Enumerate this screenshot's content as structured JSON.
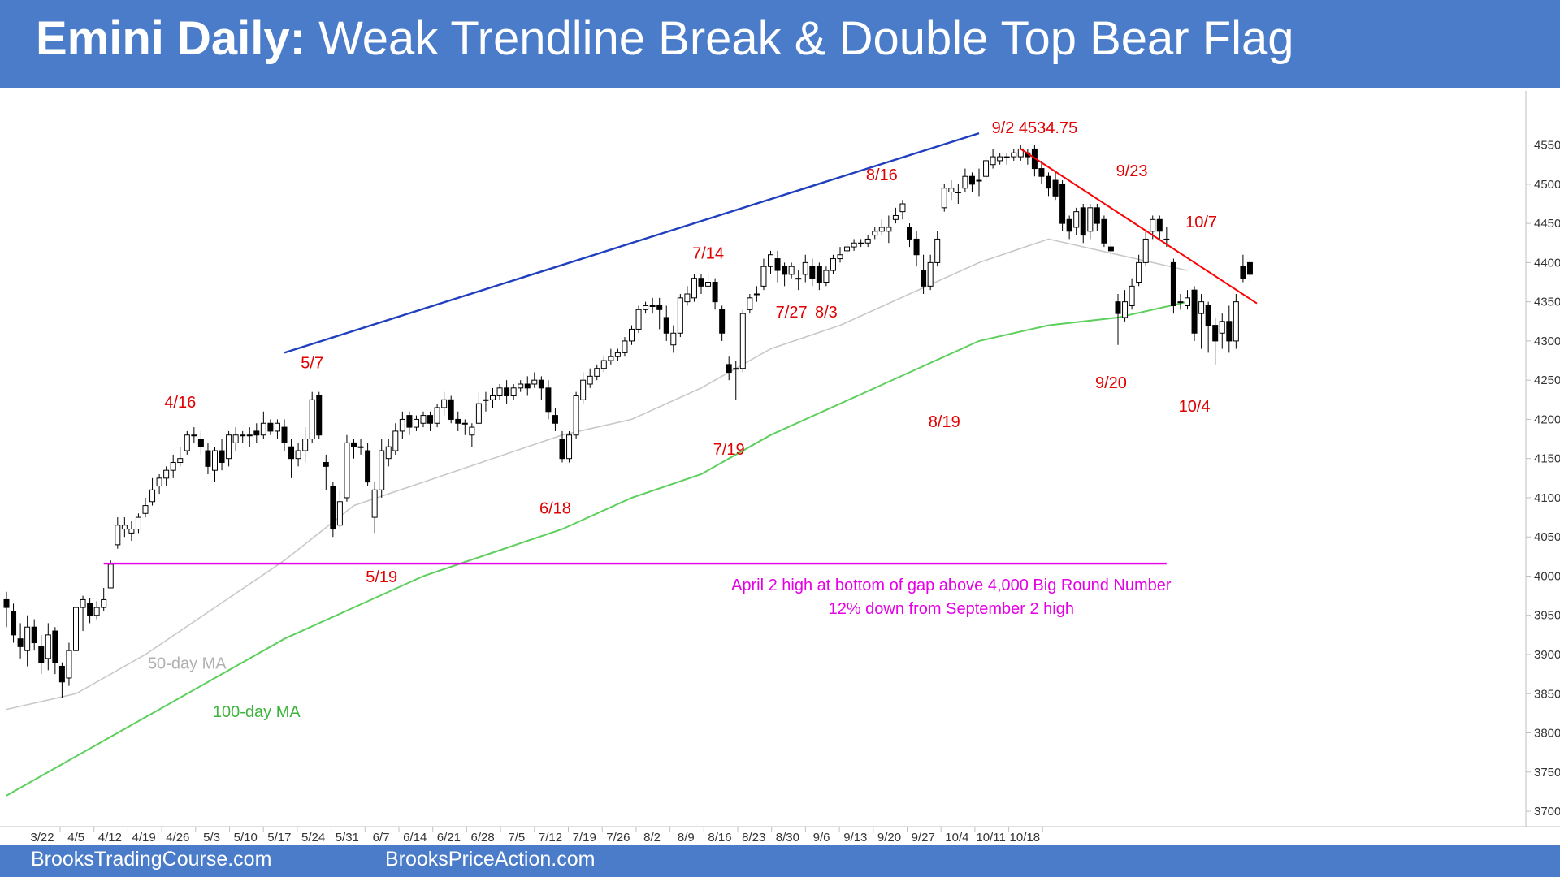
{
  "title": {
    "bold": "Emini Daily:",
    "rest": "Weak Trendline Break & Double Top Bear Flag"
  },
  "footer": {
    "left": "BrooksTradingCourse.com",
    "right": "BrooksPriceAction.com"
  },
  "colors": {
    "header": "#4a7cc9",
    "annotation": "#e00000",
    "trendline_up": "#1f3fbf",
    "trendline_down": "#ff0000",
    "horizontal": "#e600e6",
    "ma50": "#c8c8c8",
    "ma100": "#5ccf5c"
  },
  "chart_data": {
    "type": "candlestick",
    "y_axis": {
      "ticks": [
        3700,
        3750,
        3800,
        3850,
        3900,
        3950,
        4000,
        4050,
        4100,
        4150,
        4200,
        4250,
        4300,
        4350,
        4400,
        4450,
        4500,
        4550
      ],
      "range": [
        3670,
        4590
      ]
    },
    "x_axis": {
      "ticks": [
        "3/22",
        "4/5",
        "4/12",
        "4/19",
        "4/26",
        "5/3",
        "5/10",
        "5/17",
        "5/24",
        "5/31",
        "6/7",
        "6/14",
        "6/21",
        "6/28",
        "7/5",
        "7/12",
        "7/19",
        "7/26",
        "8/2",
        "8/9",
        "8/16",
        "8/23",
        "8/30",
        "9/6",
        "9/13",
        "9/20",
        "9/27",
        "10/4",
        "10/11",
        "10/18"
      ]
    },
    "candles": [
      [
        3970,
        3960,
        3980,
        3935
      ],
      [
        3955,
        3925,
        3965,
        3915
      ],
      [
        3920,
        3910,
        3940,
        3895
      ],
      [
        3905,
        3935,
        3950,
        3885
      ],
      [
        3935,
        3915,
        3945,
        3905
      ],
      [
        3910,
        3890,
        3925,
        3875
      ],
      [
        3895,
        3925,
        3940,
        3880
      ],
      [
        3930,
        3890,
        3935,
        3875
      ],
      [
        3885,
        3865,
        3890,
        3845
      ],
      [
        3870,
        3905,
        3915,
        3860
      ],
      [
        3905,
        3960,
        3970,
        3900
      ],
      [
        3960,
        3970,
        3975,
        3930
      ],
      [
        3965,
        3950,
        3972,
        3940
      ],
      [
        3950,
        3960,
        3968,
        3945
      ],
      [
        3960,
        3970,
        3985,
        3955
      ],
      [
        3985,
        4015,
        4020,
        3985
      ],
      [
        4040,
        4065,
        4075,
        4035
      ],
      [
        4060,
        4065,
        4075,
        4050
      ],
      [
        4055,
        4060,
        4070,
        4045
      ],
      [
        4060,
        4075,
        4080,
        4055
      ],
      [
        4080,
        4090,
        4100,
        4075
      ],
      [
        4095,
        4110,
        4125,
        4090
      ],
      [
        4115,
        4125,
        4130,
        4105
      ],
      [
        4125,
        4135,
        4140,
        4115
      ],
      [
        4135,
        4145,
        4155,
        4125
      ],
      [
        4145,
        4150,
        4165,
        4140
      ],
      [
        4160,
        4180,
        4185,
        4155
      ],
      [
        4180,
        4180,
        4190,
        4170
      ],
      [
        4175,
        4165,
        4185,
        4155
      ],
      [
        4160,
        4140,
        4170,
        4130
      ],
      [
        4135,
        4160,
        4165,
        4120
      ],
      [
        4160,
        4145,
        4175,
        4135
      ],
      [
        4150,
        4180,
        4185,
        4140
      ],
      [
        4170,
        4180,
        4190,
        4160
      ],
      [
        4180,
        4180,
        4185,
        4170
      ],
      [
        4180,
        4180,
        4190,
        4165
      ],
      [
        4185,
        4180,
        4195,
        4170
      ],
      [
        4180,
        4195,
        4210,
        4175
      ],
      [
        4195,
        4185,
        4200,
        4180
      ],
      [
        4185,
        4195,
        4200,
        4175
      ],
      [
        4190,
        4170,
        4200,
        4160
      ],
      [
        4165,
        4150,
        4175,
        4125
      ],
      [
        4150,
        4160,
        4170,
        4140
      ],
      [
        4160,
        4175,
        4190,
        4145
      ],
      [
        4175,
        4225,
        4235,
        4170
      ],
      [
        4230,
        4180,
        4235,
        4175
      ],
      [
        4145,
        4140,
        4155,
        4110
      ],
      [
        4115,
        4060,
        4120,
        4050
      ],
      [
        4065,
        4095,
        4110,
        4060
      ],
      [
        4100,
        4170,
        4180,
        4095
      ],
      [
        4170,
        4165,
        4175,
        4150
      ],
      [
        4165,
        4165,
        4175,
        4155
      ],
      [
        4160,
        4120,
        4170,
        4115
      ],
      [
        4075,
        4110,
        4120,
        4055
      ],
      [
        4110,
        4160,
        4175,
        4100
      ],
      [
        4150,
        4165,
        4175,
        4140
      ],
      [
        4160,
        4185,
        4195,
        4155
      ],
      [
        4185,
        4200,
        4210,
        4175
      ],
      [
        4205,
        4190,
        4210,
        4180
      ],
      [
        4190,
        4200,
        4205,
        4185
      ],
      [
        4195,
        4205,
        4210,
        4190
      ],
      [
        4205,
        4195,
        4210,
        4185
      ],
      [
        4195,
        4215,
        4220,
        4190
      ],
      [
        4215,
        4225,
        4235,
        4205
      ],
      [
        4225,
        4200,
        4230,
        4195
      ],
      [
        4200,
        4195,
        4210,
        4185
      ],
      [
        4195,
        4195,
        4200,
        4180
      ],
      [
        4180,
        4190,
        4195,
        4165
      ],
      [
        4195,
        4220,
        4235,
        4195
      ],
      [
        4225,
        4225,
        4235,
        4210
      ],
      [
        4225,
        4230,
        4240,
        4215
      ],
      [
        4230,
        4240,
        4245,
        4225
      ],
      [
        4240,
        4230,
        4250,
        4220
      ],
      [
        4230,
        4240,
        4245,
        4225
      ],
      [
        4240,
        4245,
        4250,
        4235
      ],
      [
        4245,
        4240,
        4255,
        4230
      ],
      [
        4245,
        4250,
        4260,
        4240
      ],
      [
        4250,
        4240,
        4255,
        4225
      ],
      [
        4240,
        4210,
        4250,
        4200
      ],
      [
        4205,
        4195,
        4215,
        4185
      ],
      [
        4175,
        4150,
        4185,
        4145
      ],
      [
        4150,
        4180,
        4185,
        4145
      ],
      [
        4180,
        4230,
        4235,
        4175
      ],
      [
        4225,
        4250,
        4260,
        4220
      ],
      [
        4245,
        4255,
        4265,
        4240
      ],
      [
        4255,
        4265,
        4270,
        4250
      ],
      [
        4265,
        4275,
        4280,
        4260
      ],
      [
        4275,
        4280,
        4290,
        4270
      ],
      [
        4280,
        4285,
        4290,
        4275
      ],
      [
        4285,
        4300,
        4305,
        4280
      ],
      [
        4300,
        4315,
        4320,
        4295
      ],
      [
        4315,
        4340,
        4345,
        4310
      ],
      [
        4340,
        4345,
        4350,
        4335
      ],
      [
        4345,
        4345,
        4355,
        4335
      ],
      [
        4345,
        4340,
        4355,
        4315
      ],
      [
        4330,
        4310,
        4345,
        4300
      ],
      [
        4295,
        4310,
        4320,
        4285
      ],
      [
        4310,
        4355,
        4360,
        4305
      ],
      [
        4350,
        4360,
        4370,
        4345
      ],
      [
        4355,
        4380,
        4385,
        4350
      ],
      [
        4380,
        4370,
        4385,
        4360
      ],
      [
        4370,
        4375,
        4385,
        4365
      ],
      [
        4375,
        4350,
        4380,
        4340
      ],
      [
        4340,
        4310,
        4345,
        4300
      ],
      [
        4270,
        4260,
        4280,
        4250
      ],
      [
        4265,
        4265,
        4275,
        4225
      ],
      [
        4265,
        4335,
        4340,
        4260
      ],
      [
        4340,
        4355,
        4360,
        4335
      ],
      [
        4360,
        4360,
        4370,
        4350
      ],
      [
        4370,
        4395,
        4405,
        4365
      ],
      [
        4395,
        4410,
        4415,
        4385
      ],
      [
        4405,
        4390,
        4415,
        4375
      ],
      [
        4395,
        4385,
        4400,
        4370
      ],
      [
        4385,
        4395,
        4400,
        4380
      ],
      [
        4380,
        4380,
        4390,
        4365
      ],
      [
        4385,
        4400,
        4410,
        4375
      ],
      [
        4395,
        4380,
        4405,
        4370
      ],
      [
        4395,
        4375,
        4400,
        4365
      ],
      [
        4375,
        4390,
        4395,
        4370
      ],
      [
        4390,
        4405,
        4410,
        4385
      ],
      [
        4405,
        4410,
        4420,
        4400
      ],
      [
        4415,
        4420,
        4425,
        4410
      ],
      [
        4420,
        4425,
        4430,
        4415
      ],
      [
        4425,
        4425,
        4430,
        4420
      ],
      [
        4425,
        4430,
        4435,
        4420
      ],
      [
        4435,
        4440,
        4445,
        4430
      ],
      [
        4440,
        4445,
        4455,
        4435
      ],
      [
        4440,
        4445,
        4460,
        4425
      ],
      [
        4455,
        4460,
        4470,
        4450
      ],
      [
        4465,
        4475,
        4480,
        4455
      ],
      [
        4445,
        4430,
        4450,
        4420
      ],
      [
        4430,
        4410,
        4440,
        4395
      ],
      [
        4390,
        4370,
        4410,
        4360
      ],
      [
        4370,
        4400,
        4410,
        4365
      ],
      [
        4400,
        4430,
        4440,
        4395
      ],
      [
        4470,
        4495,
        4500,
        4465
      ],
      [
        4490,
        4495,
        4505,
        4480
      ],
      [
        4490,
        4490,
        4500,
        4475
      ],
      [
        4495,
        4510,
        4520,
        4490
      ],
      [
        4510,
        4500,
        4515,
        4490
      ],
      [
        4505,
        4505,
        4520,
        4485
      ],
      [
        4510,
        4530,
        4535,
        4505
      ],
      [
        4525,
        4535,
        4545,
        4520
      ],
      [
        4530,
        4535,
        4540,
        4525
      ],
      [
        4535,
        4535,
        4540,
        4525
      ],
      [
        4535,
        4540,
        4545,
        4530
      ],
      [
        4535,
        4545,
        4550,
        4530
      ],
      [
        4540,
        4535,
        4545,
        4525
      ],
      [
        4545,
        4520,
        4550,
        4510
      ],
      [
        4520,
        4510,
        4530,
        4500
      ],
      [
        4510,
        4495,
        4515,
        4485
      ],
      [
        4505,
        4485,
        4515,
        4480
      ],
      [
        4500,
        4450,
        4505,
        4440
      ],
      [
        4455,
        4440,
        4460,
        4430
      ],
      [
        4445,
        4465,
        4470,
        4435
      ],
      [
        4470,
        4435,
        4475,
        4425
      ],
      [
        4440,
        4470,
        4475,
        4430
      ],
      [
        4470,
        4450,
        4475,
        4440
      ],
      [
        4455,
        4425,
        4460,
        4420
      ],
      [
        4420,
        4415,
        4435,
        4405
      ],
      [
        4350,
        4335,
        4360,
        4295
      ],
      [
        4330,
        4350,
        4365,
        4325
      ],
      [
        4345,
        4370,
        4380,
        4340
      ],
      [
        4375,
        4400,
        4410,
        4370
      ],
      [
        4400,
        4430,
        4440,
        4395
      ],
      [
        4440,
        4455,
        4460,
        4430
      ],
      [
        4455,
        4440,
        4460,
        4430
      ],
      [
        4430,
        4430,
        4445,
        4420
      ],
      [
        4400,
        4345,
        4405,
        4335
      ],
      [
        4350,
        4350,
        4360,
        4340
      ],
      [
        4345,
        4355,
        4365,
        4340
      ],
      [
        4365,
        4310,
        4370,
        4300
      ],
      [
        4335,
        4350,
        4360,
        4290
      ],
      [
        4345,
        4320,
        4350,
        4285
      ],
      [
        4320,
        4300,
        4330,
        4270
      ],
      [
        4310,
        4325,
        4335,
        4290
      ],
      [
        4325,
        4300,
        4345,
        4285
      ],
      [
        4300,
        4350,
        4360,
        4290
      ],
      [
        4395,
        4380,
        4410,
        4375
      ],
      [
        4400,
        4385,
        4405,
        4375
      ]
    ],
    "ma50": [
      [
        0,
        3830
      ],
      [
        10,
        3850
      ],
      [
        20,
        3900
      ],
      [
        30,
        3960
      ],
      [
        40,
        4020
      ],
      [
        50,
        4090
      ],
      [
        60,
        4120
      ],
      [
        70,
        4150
      ],
      [
        80,
        4180
      ],
      [
        90,
        4200
      ],
      [
        100,
        4240
      ],
      [
        110,
        4290
      ],
      [
        120,
        4320
      ],
      [
        130,
        4360
      ],
      [
        140,
        4400
      ],
      [
        150,
        4430
      ],
      [
        160,
        4410
      ],
      [
        170,
        4390
      ]
    ],
    "ma100": [
      [
        0,
        3720
      ],
      [
        10,
        3770
      ],
      [
        20,
        3820
      ],
      [
        30,
        3870
      ],
      [
        40,
        3920
      ],
      [
        50,
        3960
      ],
      [
        60,
        4000
      ],
      [
        70,
        4030
      ],
      [
        80,
        4060
      ],
      [
        90,
        4100
      ],
      [
        100,
        4130
      ],
      [
        110,
        4180
      ],
      [
        120,
        4220
      ],
      [
        130,
        4260
      ],
      [
        140,
        4300
      ],
      [
        150,
        4320
      ],
      [
        160,
        4330
      ],
      [
        170,
        4350
      ]
    ],
    "lines": {
      "bull_trendline": {
        "from": [
          40,
          4285
        ],
        "to": [
          140,
          4565
        ]
      },
      "bear_trendline": {
        "from": [
          146,
          4545
        ],
        "to": [
          180,
          4348
        ]
      },
      "april2_high": {
        "from": [
          14,
          4016
        ],
        "to": [
          167,
          4016
        ]
      }
    },
    "annotations": [
      {
        "text": "9/2 4534.75",
        "i": 148,
        "price": 4565,
        "color": "red"
      },
      {
        "text": "8/16",
        "i": 126,
        "price": 4505,
        "color": "red"
      },
      {
        "text": "9/23",
        "i": 162,
        "price": 4510,
        "color": "red"
      },
      {
        "text": "10/7",
        "i": 172,
        "price": 4445,
        "color": "red"
      },
      {
        "text": "7/14",
        "i": 101,
        "price": 4405,
        "color": "red"
      },
      {
        "text": "7/27",
        "i": 113,
        "price": 4330,
        "color": "red"
      },
      {
        "text": "8/3",
        "i": 118,
        "price": 4330,
        "color": "red"
      },
      {
        "text": "5/7",
        "i": 44,
        "price": 4265,
        "color": "red"
      },
      {
        "text": "4/16",
        "i": 25,
        "price": 4215,
        "color": "red"
      },
      {
        "text": "9/20",
        "i": 159,
        "price": 4240,
        "color": "red"
      },
      {
        "text": "10/4",
        "i": 171,
        "price": 4210,
        "color": "red"
      },
      {
        "text": "8/19",
        "i": 135,
        "price": 4190,
        "color": "red"
      },
      {
        "text": "7/19",
        "i": 104,
        "price": 4155,
        "color": "red"
      },
      {
        "text": "6/18",
        "i": 79,
        "price": 4080,
        "color": "red"
      },
      {
        "text": "5/19",
        "i": 54,
        "price": 3992,
        "color": "red"
      },
      {
        "text": "April 2 high at bottom of gap above 4,000 Big Round Number",
        "i": 136,
        "price": 3982,
        "color": "magenta"
      },
      {
        "text": "12% down from September 2 high",
        "i": 136,
        "price": 3952,
        "color": "magenta"
      },
      {
        "text": "50-day MA",
        "i": 26,
        "price": 3882,
        "color": "gray"
      },
      {
        "text": "100-day MA",
        "i": 36,
        "price": 3820,
        "color": "green"
      }
    ]
  }
}
